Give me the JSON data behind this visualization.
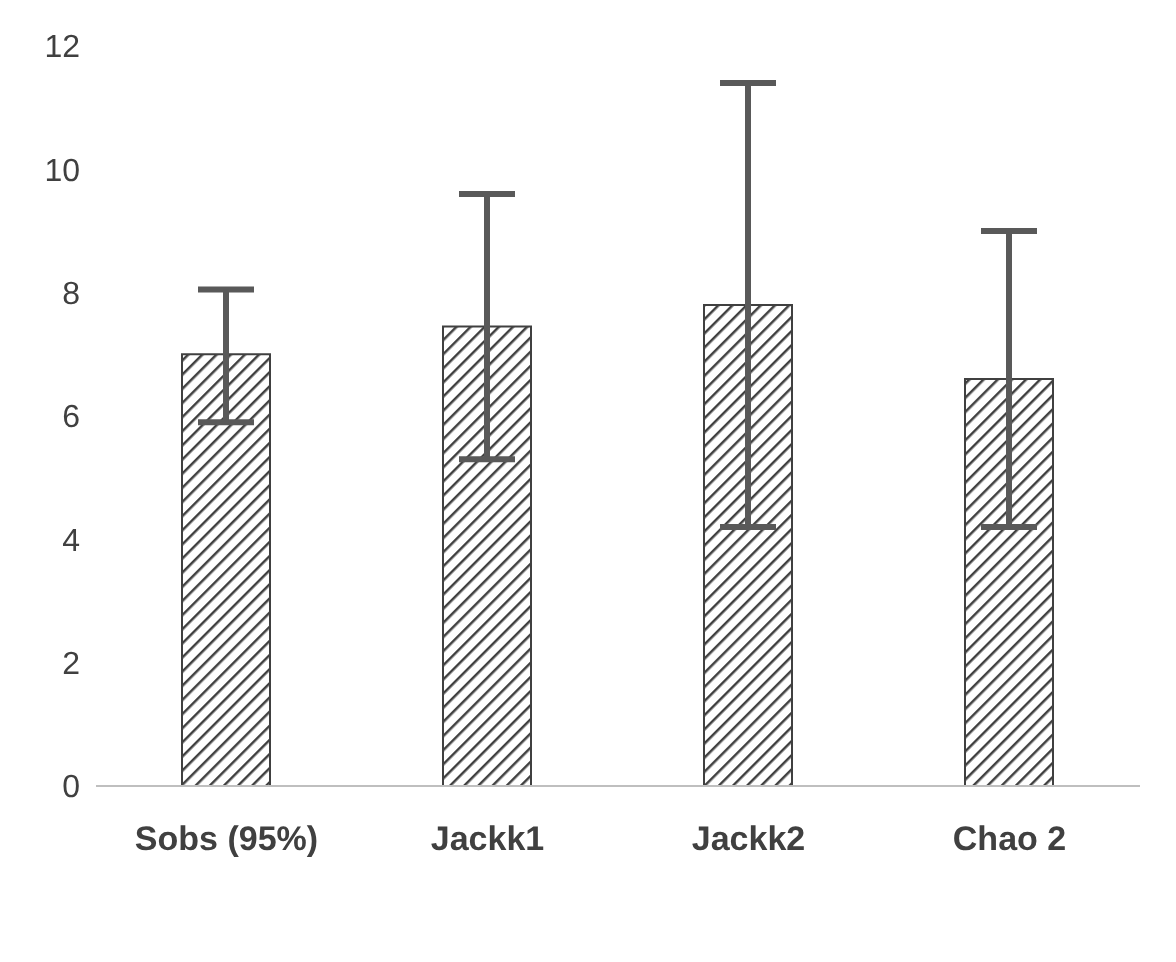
{
  "chart_data": {
    "type": "bar",
    "categories": [
      "Sobs (95%)",
      "Jackk1",
      "Jackk2",
      "Chao 2"
    ],
    "values": [
      7.0,
      7.45,
      7.8,
      6.6
    ],
    "errors": [
      [
        5.9,
        8.05
      ],
      [
        5.3,
        9.6
      ],
      [
        4.2,
        11.4
      ],
      [
        4.2,
        9.0
      ]
    ],
    "color": "#404040",
    "ylim": [
      0,
      12
    ],
    "yticks": [
      0,
      2,
      4,
      6,
      8,
      10,
      12
    ],
    "grid": false
  }
}
